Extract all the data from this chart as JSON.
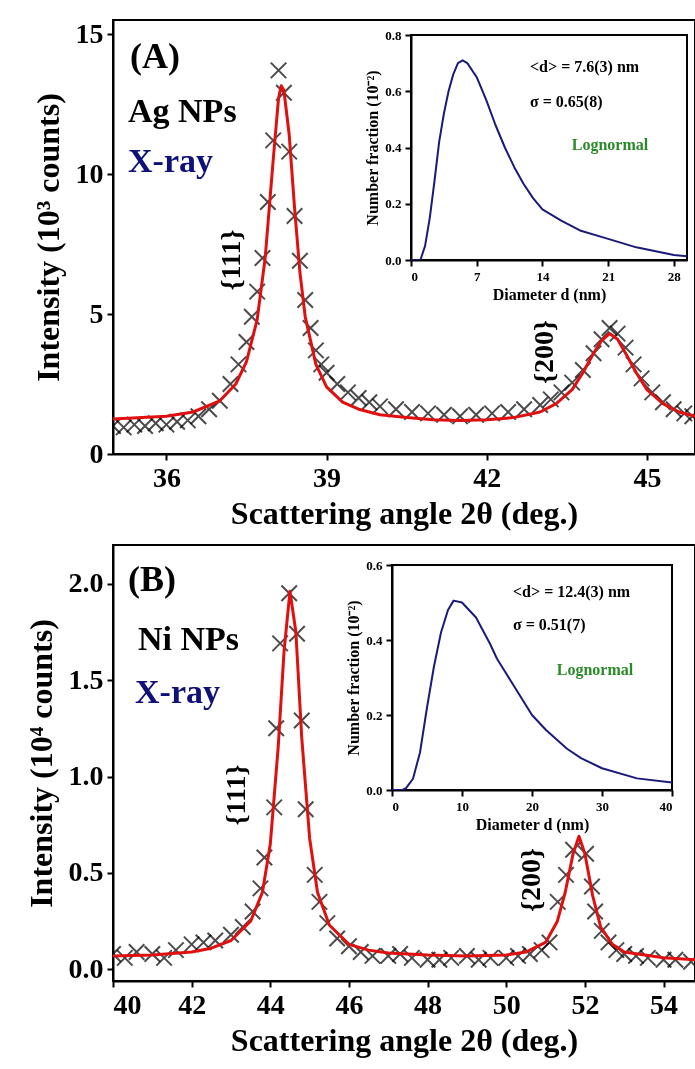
{
  "chart_data": [
    {
      "type": "scatter",
      "xlabel": "Scattering angle 2θ (deg.)",
      "ylabel": "Intensity (10³ counts)",
      "xlim": [
        35,
        45.9
      ],
      "ylim": [
        0,
        15.5
      ],
      "xticks": [
        36,
        39,
        42,
        45
      ],
      "yticks": [
        0,
        5,
        10,
        15
      ],
      "annotations": [
        "(A)",
        "Ag NPs",
        "X-ray",
        "{111}",
        "{200}"
      ],
      "series": [
        {
          "marker": "cross",
          "color": "#000000",
          "x": [
            35.0,
            35.2,
            35.4,
            35.6,
            35.8,
            36.0,
            36.2,
            36.4,
            36.6,
            36.8,
            37.0,
            37.2,
            37.35,
            37.5,
            37.6,
            37.7,
            37.8,
            37.9,
            38.0,
            38.1,
            38.2,
            38.3,
            38.4,
            38.5,
            38.6,
            38.7,
            38.8,
            38.9,
            39.0,
            39.2,
            39.4,
            39.6,
            39.8,
            40.0,
            40.3,
            40.6,
            40.9,
            41.2,
            41.5,
            41.8,
            42.1,
            42.4,
            42.7,
            43.0,
            43.2,
            43.4,
            43.6,
            43.8,
            44.0,
            44.15,
            44.3,
            44.45,
            44.6,
            44.75,
            44.9,
            45.1,
            45.3,
            45.5,
            45.7,
            45.85
          ],
          "values": [
            1.0,
            0.95,
            1.05,
            1.0,
            1.1,
            1.05,
            1.15,
            1.2,
            1.35,
            1.6,
            1.9,
            2.5,
            3.2,
            4.0,
            4.9,
            5.8,
            7.0,
            9.0,
            11.2,
            13.7,
            12.9,
            10.8,
            8.5,
            6.9,
            5.5,
            4.5,
            3.7,
            3.2,
            2.9,
            2.5,
            2.2,
            2.0,
            1.85,
            1.7,
            1.6,
            1.5,
            1.45,
            1.4,
            1.35,
            1.4,
            1.45,
            1.5,
            1.6,
            1.75,
            1.95,
            2.2,
            2.55,
            3.0,
            3.6,
            4.1,
            4.5,
            4.3,
            3.8,
            3.2,
            2.7,
            2.2,
            1.85,
            1.6,
            1.45,
            1.35
          ]
        },
        {
          "type": "line",
          "color": "#e01010",
          "x": [
            35,
            36,
            36.5,
            37,
            37.3,
            37.5,
            37.7,
            37.85,
            38.0,
            38.1,
            38.15,
            38.2,
            38.3,
            38.4,
            38.5,
            38.6,
            38.8,
            39,
            39.3,
            39.6,
            40,
            40.5,
            41,
            41.5,
            42,
            42.5,
            43,
            43.3,
            43.6,
            43.8,
            44.0,
            44.15,
            44.3,
            44.45,
            44.6,
            44.8,
            45,
            45.3,
            45.6,
            45.9
          ],
          "values": [
            1.25,
            1.35,
            1.5,
            1.9,
            2.5,
            3.3,
            4.8,
            7,
            10.5,
            12.7,
            13.15,
            13.0,
            11.4,
            8.8,
            6.5,
            4.9,
            3.2,
            2.4,
            1.85,
            1.6,
            1.4,
            1.3,
            1.22,
            1.2,
            1.22,
            1.3,
            1.5,
            1.8,
            2.3,
            2.9,
            3.6,
            4.05,
            4.3,
            4.1,
            3.6,
            2.9,
            2.3,
            1.8,
            1.5,
            1.35
          ]
        }
      ]
    },
    {
      "type": "line",
      "xlabel": "Diameter d (nm)",
      "ylabel": "Number fraction (10⁻²)",
      "xlim": [
        0,
        29.4
      ],
      "ylim": [
        0,
        0.8
      ],
      "xticks": [
        0,
        7,
        14,
        21,
        28
      ],
      "yticks": [
        {
          "value": 0,
          "label": "0.0"
        },
        0.2,
        0.4,
        0.6,
        0.8
      ],
      "annotations": [
        "<d> = 7.6(3) nm",
        "σ = 0.65(8)",
        "Lognormal"
      ],
      "series": [
        {
          "color": "#1a1a7a",
          "x": [
            0,
            1,
            1.5,
            2,
            2.5,
            3,
            3.5,
            4,
            4.5,
            5,
            5.5,
            6,
            7,
            8,
            9,
            10,
            11,
            12,
            13,
            14,
            16,
            18,
            21,
            24,
            28,
            29.4
          ],
          "values": [
            0,
            0,
            0.05,
            0.15,
            0.28,
            0.42,
            0.52,
            0.6,
            0.66,
            0.7,
            0.71,
            0.7,
            0.65,
            0.57,
            0.48,
            0.4,
            0.33,
            0.27,
            0.22,
            0.18,
            0.14,
            0.105,
            0.075,
            0.045,
            0.018,
            0.013
          ]
        }
      ]
    },
    {
      "type": "scatter",
      "xlabel": "Scattering angle 2θ (deg.)",
      "ylabel": "Intensity (10⁴ counts)",
      "xlim": [
        40,
        54.8
      ],
      "ylim": [
        -0.06,
        2.2
      ],
      "xticks": [
        40,
        42,
        44,
        46,
        48,
        50,
        52,
        54
      ],
      "yticks": [
        {
          "value": 0,
          "label": "0.0"
        },
        0.5,
        {
          "value": 1,
          "label": "1.0"
        },
        1.5,
        {
          "value": 2,
          "label": "2.0"
        }
      ],
      "annotations": [
        "(B)",
        "Ni NPs",
        "X-ray",
        "{111}",
        "{200}"
      ],
      "series": [
        {
          "marker": "cross",
          "color": "#000000",
          "x": [
            40,
            40.3,
            40.6,
            41,
            41.3,
            41.6,
            42,
            42.3,
            42.6,
            43,
            43.3,
            43.55,
            43.75,
            43.85,
            44.1,
            44.15,
            44.25,
            44.48,
            44.68,
            44.8,
            44.9,
            45.13,
            45.25,
            45.45,
            45.7,
            46,
            46.3,
            46.6,
            47,
            47.3,
            47.6,
            48,
            48.3,
            48.6,
            49,
            49.3,
            49.6,
            50,
            50.3,
            50.6,
            50.9,
            51.1,
            51.31,
            51.52,
            51.7,
            52.03,
            52.18,
            52.26,
            52.43,
            52.6,
            52.8,
            53,
            53.3,
            53.6,
            54,
            54.3,
            54.7
          ],
          "values": [
            0.08,
            0.06,
            0.09,
            0.08,
            0.06,
            0.1,
            0.13,
            0.14,
            0.15,
            0.18,
            0.22,
            0.3,
            0.42,
            0.58,
            0.84,
            1.25,
            1.69,
            1.95,
            1.74,
            1.29,
            0.83,
            0.49,
            0.35,
            0.24,
            0.16,
            0.12,
            0.09,
            0.07,
            0.07,
            0.08,
            0.06,
            0.05,
            0.05,
            0.06,
            0.07,
            0.05,
            0.06,
            0.06,
            0.07,
            0.08,
            0.1,
            0.14,
            0.35,
            0.49,
            0.62,
            0.6,
            0.43,
            0.3,
            0.2,
            0.14,
            0.1,
            0.08,
            0.07,
            0.06,
            0.05,
            0.05,
            0.04
          ]
        },
        {
          "type": "line",
          "color": "#e01010",
          "x": [
            40,
            41,
            42,
            42.5,
            43,
            43.5,
            43.8,
            44,
            44.2,
            44.35,
            44.5,
            44.65,
            44.8,
            45,
            45.2,
            45.5,
            46,
            46.5,
            47,
            48,
            49,
            50,
            50.5,
            51,
            51.3,
            51.5,
            51.7,
            51.85,
            52,
            52.2,
            52.4,
            52.7,
            53,
            54,
            54.8
          ],
          "values": [
            0.07,
            0.075,
            0.09,
            0.11,
            0.15,
            0.25,
            0.4,
            0.65,
            1.15,
            1.65,
            1.96,
            1.75,
            1.2,
            0.68,
            0.4,
            0.23,
            0.13,
            0.1,
            0.085,
            0.075,
            0.07,
            0.075,
            0.09,
            0.14,
            0.25,
            0.4,
            0.6,
            0.69,
            0.6,
            0.38,
            0.22,
            0.13,
            0.09,
            0.06,
            0.05
          ]
        }
      ]
    },
    {
      "type": "line",
      "xlabel": "Diameter d (nm)",
      "ylabel": "Number fraction (10⁻²)",
      "xlim": [
        0,
        40
      ],
      "ylim": [
        0,
        0.6
      ],
      "xticks": [
        0,
        10,
        20,
        30,
        40
      ],
      "yticks": [
        {
          "value": 0,
          "label": "0.0"
        },
        0.2,
        0.4,
        0.6
      ],
      "annotations": [
        "<d> = 12.4(3) nm",
        "σ = 0.51(7)",
        "Lognormal"
      ],
      "series": [
        {
          "color": "#1a1a7a",
          "x": [
            0,
            1.5,
            2,
            3,
            4,
            5,
            6,
            7,
            8,
            8.8,
            10,
            12,
            14,
            15,
            17,
            20,
            22,
            25,
            27,
            30,
            35,
            40
          ],
          "values": [
            0,
            0,
            0.005,
            0.03,
            0.1,
            0.22,
            0.33,
            0.42,
            0.48,
            0.505,
            0.5,
            0.46,
            0.39,
            0.35,
            0.29,
            0.2,
            0.16,
            0.11,
            0.085,
            0.058,
            0.031,
            0.02
          ]
        }
      ]
    }
  ]
}
